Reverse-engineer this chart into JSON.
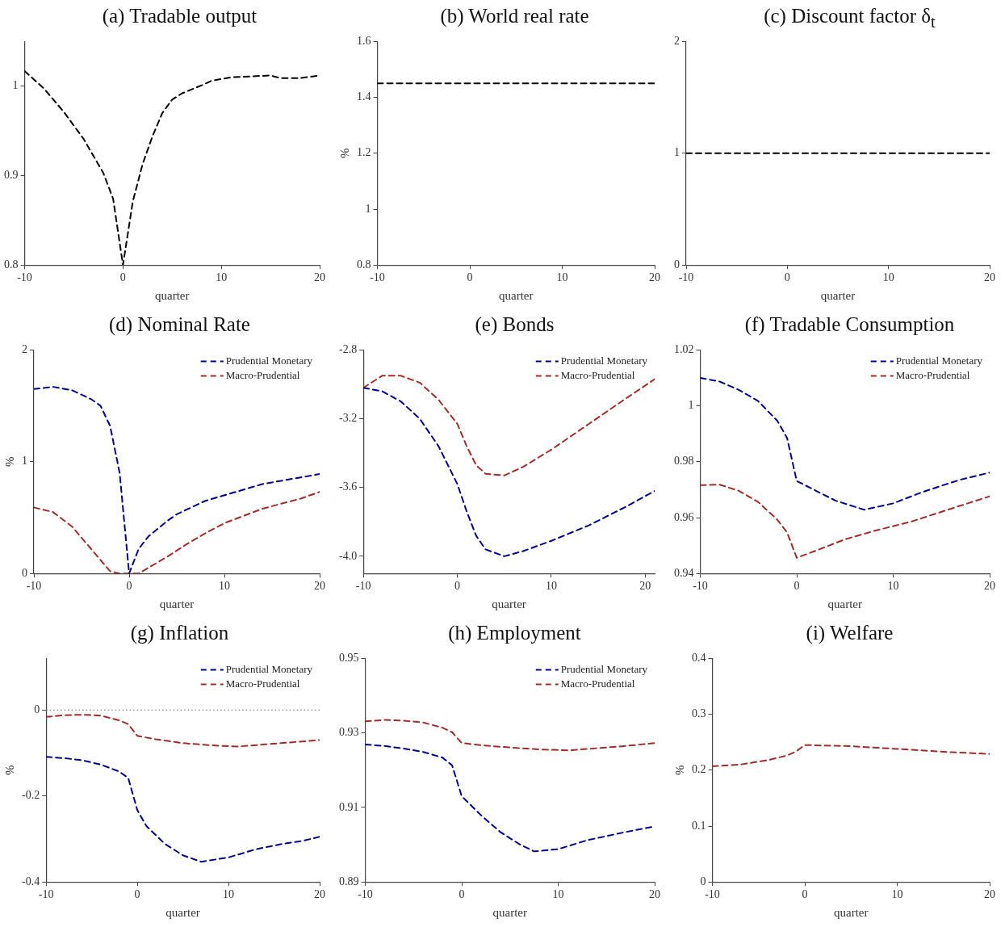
{
  "chart_data": [
    {
      "type": "line",
      "title": "(a) Tradable output",
      "xlabel": "quarter",
      "xlim": [
        -10,
        20
      ],
      "xticks": [
        -10,
        0,
        10,
        20
      ],
      "ylim": [
        0.8,
        1.05
      ],
      "yticks": [
        0.8,
        0.9,
        1
      ],
      "line_style": "dashed",
      "series": [
        {
          "color": "#000000",
          "x": [
            -10,
            -8,
            -6,
            -4,
            -2,
            -1,
            0,
            1,
            2,
            3,
            4,
            5,
            6,
            8,
            9,
            11,
            15,
            16,
            18,
            20
          ],
          "values": [
            1.017,
            0.997,
            0.971,
            0.941,
            0.903,
            0.874,
            0.8,
            0.871,
            0.913,
            0.944,
            0.97,
            0.985,
            0.992,
            1.001,
            1.006,
            1.01,
            1.012,
            1.009,
            1.009,
            1.012
          ]
        }
      ]
    },
    {
      "type": "line",
      "title": "(b) World real rate",
      "xlabel": "quarter",
      "ylabel": "%",
      "xlim": [
        -10,
        20
      ],
      "xticks": [
        -10,
        0,
        10,
        20
      ],
      "ylim": [
        0.8,
        1.6
      ],
      "yticks": [
        0.8,
        1,
        1.2,
        1.4,
        1.6
      ],
      "line_style": "dashed",
      "series": [
        {
          "color": "#000000",
          "x": [
            -10,
            20
          ],
          "values": [
            1.45,
            1.45
          ]
        }
      ]
    },
    {
      "type": "line",
      "title": "(c) Discount factor δ$_{t}$",
      "xlabel": "quarter",
      "xlim": [
        -10,
        20
      ],
      "xticks": [
        -10,
        0,
        10,
        20
      ],
      "ylim": [
        0,
        2
      ],
      "yticks": [
        0,
        1,
        2
      ],
      "line_style": "dashed",
      "series": [
        {
          "color": "#000000",
          "x": [
            -10,
            20
          ],
          "values": [
            1,
            1
          ]
        }
      ]
    },
    {
      "type": "line",
      "title": "(d) Nominal Rate",
      "xlabel": "quarter",
      "ylabel": "%",
      "xlim": [
        -10,
        20
      ],
      "xticks": [
        -10,
        0,
        10,
        20
      ],
      "ylim": [
        0,
        2
      ],
      "yticks": [
        0,
        1,
        2
      ],
      "legend": "top right",
      "line_style": "dashed",
      "series": [
        {
          "name": "Prudential Monetary",
          "color": "#00008b",
          "x": [
            -10,
            -8,
            -6,
            -4,
            -3,
            -2,
            -1,
            0,
            1,
            2,
            4,
            5,
            8,
            10,
            14,
            18,
            20
          ],
          "values": [
            1.65,
            1.67,
            1.64,
            1.56,
            1.5,
            1.32,
            0.9,
            0,
            0.22,
            0.33,
            0.47,
            0.53,
            0.65,
            0.7,
            0.8,
            0.86,
            0.89
          ]
        },
        {
          "name": "Macro-Prudential",
          "color": "#a02c2c",
          "x": [
            -10,
            -8,
            -6,
            -4,
            -2,
            -1,
            0,
            1,
            2,
            4,
            6,
            8,
            10,
            14,
            18,
            20
          ],
          "values": [
            0.59,
            0.55,
            0.42,
            0.22,
            0.02,
            0,
            0,
            0,
            0.05,
            0.15,
            0.26,
            0.36,
            0.45,
            0.58,
            0.67,
            0.73
          ]
        }
      ]
    },
    {
      "type": "line",
      "title": "(e) Bonds",
      "xlabel": "quarter",
      "xlim": [
        -10,
        21
      ],
      "xticks": [
        -10,
        0,
        10,
        20
      ],
      "ylim": [
        -4.1,
        -2.8
      ],
      "yticks": [
        -2.8,
        -3.2,
        -3.6,
        {
          "value": -4,
          "label": "-4.0"
        }
      ],
      "legend": "top right",
      "line_style": "dashed",
      "series": [
        {
          "name": "Prudential Monetary",
          "color": "#00008b",
          "x": [
            -10,
            -8,
            -6,
            -4,
            -2,
            0,
            1,
            2,
            3,
            5,
            7,
            10,
            14,
            18,
            21
          ],
          "values": [
            -3.02,
            -3.04,
            -3.1,
            -3.2,
            -3.36,
            -3.58,
            -3.74,
            -3.88,
            -3.96,
            -4.0,
            -3.97,
            -3.91,
            -3.82,
            -3.71,
            -3.62
          ]
        },
        {
          "name": "Macro-Prudential",
          "color": "#a02c2c",
          "x": [
            -10,
            -8,
            -6,
            -4,
            -2,
            0,
            1,
            2,
            3,
            5,
            7,
            10,
            14,
            18,
            21
          ],
          "values": [
            -3.02,
            -2.95,
            -2.95,
            -2.99,
            -3.09,
            -3.23,
            -3.36,
            -3.47,
            -3.52,
            -3.53,
            -3.48,
            -3.38,
            -3.23,
            -3.08,
            -2.97
          ]
        }
      ]
    },
    {
      "type": "line",
      "title": "(f) Tradable Consumption",
      "xlabel": "quarter",
      "xlim": [
        -10,
        20
      ],
      "xticks": [
        -10,
        0,
        10,
        20
      ],
      "ylim": [
        0.94,
        1.02
      ],
      "yticks": [
        0.94,
        0.96,
        0.98,
        1,
        1.02
      ],
      "legend": "top right",
      "line_style": "dashed",
      "series": [
        {
          "name": "Prudential Monetary",
          "color": "#00008b",
          "x": [
            -10,
            -8,
            -6,
            -4,
            -2,
            -1,
            0,
            2,
            4,
            7,
            10,
            13,
            15,
            17,
            20
          ],
          "values": [
            1.01,
            1.0087,
            1.0057,
            1.0017,
            0.9946,
            0.9885,
            0.9731,
            0.9696,
            0.9661,
            0.9628,
            0.9651,
            0.9691,
            0.9714,
            0.9736,
            0.9761
          ]
        },
        {
          "name": "Macro-Prudential",
          "color": "#a02c2c",
          "x": [
            -10,
            -8,
            -6,
            -4,
            -2,
            -1,
            0,
            2,
            5,
            8,
            12,
            16,
            20
          ],
          "values": [
            0.9716,
            0.9718,
            0.9696,
            0.9656,
            0.9592,
            0.9547,
            0.9456,
            0.9482,
            0.9522,
            0.9552,
            0.9587,
            0.9632,
            0.9676
          ]
        }
      ]
    },
    {
      "type": "line",
      "title": "(g) Inflation",
      "xlabel": "quarter",
      "ylabel": "%",
      "xlim": [
        -10,
        20
      ],
      "xticks": [
        -10,
        0,
        10,
        20
      ],
      "ylim": [
        -0.4,
        0.12
      ],
      "yticks": [
        -0.4,
        -0.2,
        0
      ],
      "legend": "top right",
      "line_style": "dashed",
      "ref_lines": [
        {
          "axis": "y",
          "value": 0,
          "color": "#666666",
          "line_style": "dotted"
        }
      ],
      "series": [
        {
          "name": "Prudential Monetary",
          "color": "#00008b",
          "x": [
            -10,
            -8,
            -6,
            -4,
            -2,
            -1,
            0,
            1,
            3,
            5,
            7,
            10,
            13,
            16,
            18,
            20
          ],
          "values": [
            -0.109,
            -0.112,
            -0.117,
            -0.127,
            -0.143,
            -0.158,
            -0.233,
            -0.27,
            -0.311,
            -0.338,
            -0.353,
            -0.343,
            -0.324,
            -0.311,
            -0.305,
            -0.295
          ]
        },
        {
          "name": "Macro-Prudential",
          "color": "#a02c2c",
          "x": [
            -10,
            -8,
            -6,
            -4,
            -2,
            -1,
            0,
            2,
            5,
            8,
            11,
            14,
            17,
            20
          ],
          "values": [
            -0.016,
            -0.012,
            -0.011,
            -0.013,
            -0.024,
            -0.033,
            -0.06,
            -0.068,
            -0.077,
            -0.082,
            -0.085,
            -0.08,
            -0.075,
            -0.07
          ]
        }
      ]
    },
    {
      "type": "line",
      "title": "(h) Employment",
      "xlabel": "quarter",
      "xlim": [
        -10,
        20
      ],
      "xticks": [
        -10,
        0,
        10,
        20
      ],
      "ylim": [
        0.89,
        0.95
      ],
      "yticks": [
        0.89,
        0.91,
        0.93,
        0.95
      ],
      "legend": "top right",
      "line_style": "dashed",
      "series": [
        {
          "name": "Prudential Monetary",
          "color": "#00008b",
          "x": [
            -10,
            -8,
            -6,
            -4,
            -2,
            -1,
            0,
            2,
            4,
            6,
            7.5,
            10,
            13,
            15,
            17,
            20
          ],
          "values": [
            0.9269,
            0.9265,
            0.9258,
            0.9249,
            0.9234,
            0.9213,
            0.913,
            0.9079,
            0.9034,
            0.9001,
            0.8982,
            0.8988,
            0.9012,
            0.9023,
            0.9034,
            0.9049
          ]
        },
        {
          "name": "Macro-Prudential",
          "color": "#a02c2c",
          "x": [
            -10,
            -8,
            -6,
            -4,
            -2,
            -1,
            0,
            2,
            5,
            8,
            11,
            14,
            17,
            20
          ],
          "values": [
            0.9331,
            0.9335,
            0.9333,
            0.9328,
            0.9314,
            0.9302,
            0.9273,
            0.9267,
            0.9261,
            0.9256,
            0.9253,
            0.9259,
            0.9265,
            0.9273
          ]
        }
      ]
    },
    {
      "type": "line",
      "title": "(i) Welfare",
      "xlabel": "quarter",
      "ylabel": "%",
      "xlim": [
        -10,
        20
      ],
      "xticks": [
        -10,
        0,
        10,
        20
      ],
      "ylim": [
        0,
        0.4
      ],
      "yticks": [
        0,
        0.1,
        0.2,
        0.3,
        0.4
      ],
      "line_style": "dashed",
      "series": [
        {
          "color": "#a02c2c",
          "x": [
            -10,
            -7,
            -4,
            -2,
            -1,
            0,
            5,
            10,
            15,
            20
          ],
          "values": [
            0.207,
            0.21,
            0.218,
            0.226,
            0.233,
            0.245,
            0.243,
            0.238,
            0.233,
            0.229
          ]
        }
      ]
    }
  ]
}
